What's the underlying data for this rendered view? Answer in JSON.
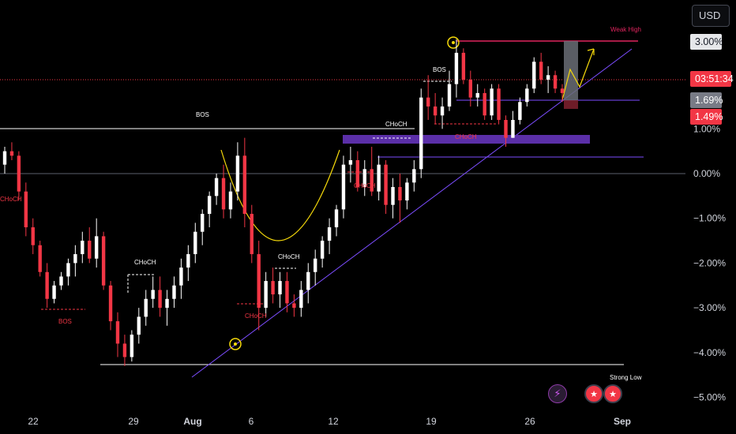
{
  "axis": {
    "currency": "USD",
    "price_tags": {
      "top": "3.00%",
      "countdown": "03:51:34",
      "mid": "1.69%",
      "low": "1.49%"
    },
    "y_ticks": [
      {
        "value": 1.0,
        "label": "1.00%"
      },
      {
        "value": 0.0,
        "label": "0.00%"
      },
      {
        "value": -1.0,
        "label": "−1.00%"
      },
      {
        "value": -2.0,
        "label": "−2.00%"
      },
      {
        "value": -3.0,
        "label": "−3.00%"
      },
      {
        "value": -4.0,
        "label": "−4.00%"
      },
      {
        "value": -5.0,
        "label": "−5.00%"
      }
    ],
    "x_ticks": [
      {
        "label": "22",
        "bold": false
      },
      {
        "label": "29",
        "bold": false
      },
      {
        "label": "Aug",
        "bold": true
      },
      {
        "label": "6",
        "bold": false
      },
      {
        "label": "12",
        "bold": false
      },
      {
        "label": "19",
        "bold": false
      },
      {
        "label": "26",
        "bold": false
      },
      {
        "label": "Sep",
        "bold": true
      }
    ]
  },
  "annotations": {
    "bos_major": "BOS",
    "bos_left": "BOS",
    "bos_top": "BOS",
    "choch_left": "CHoCH",
    "choch_1": "CHoCH",
    "choch_2": "CHoCH",
    "choch_3": "CHoCH",
    "choch_4": "CHoCH",
    "choch_5": "CHoCH",
    "choch_6": "CHoCH",
    "weak_high": "Weak High",
    "strong_low": "Strong Low"
  },
  "colors": {
    "up": "#ffffff",
    "down": "#f23645",
    "background": "#000000",
    "trendline": "#7c4dff",
    "zone": "#5b2fa8",
    "curve": "#f5d90a",
    "weak_high_line": "#e0245e"
  },
  "icons": [
    "flash-icon",
    "us-flag-icon",
    "us-flag-icon"
  ],
  "chart_data": {
    "type": "candlestick",
    "y_unit": "%",
    "ylim": [
      -5.3,
      3.6
    ],
    "x_period": "Jul 20 – Sep 1",
    "candles": [
      [
        0.2,
        0.6,
        0.0,
        0.5
      ],
      [
        0.5,
        0.7,
        0.3,
        0.4
      ],
      [
        0.4,
        0.5,
        -0.6,
        -0.4
      ],
      [
        -0.4,
        -0.2,
        -1.4,
        -1.2
      ],
      [
        -1.2,
        -1.0,
        -1.8,
        -1.6
      ],
      [
        -1.6,
        -1.5,
        -2.3,
        -2.2
      ],
      [
        -2.2,
        -2.0,
        -3.0,
        -2.8
      ],
      [
        -2.8,
        -2.4,
        -2.9,
        -2.5
      ],
      [
        -2.5,
        -2.2,
        -2.6,
        -2.3
      ],
      [
        -2.3,
        -1.9,
        -2.5,
        -2.0
      ],
      [
        -2.0,
        -1.6,
        -2.3,
        -1.8
      ],
      [
        -1.8,
        -1.3,
        -2.0,
        -1.5
      ],
      [
        -1.5,
        -1.2,
        -2.0,
        -1.9
      ],
      [
        -1.9,
        -1.0,
        -2.1,
        -1.4
      ],
      [
        -1.4,
        -1.3,
        -2.6,
        -2.5
      ],
      [
        -2.5,
        -2.4,
        -3.5,
        -3.3
      ],
      [
        -3.3,
        -3.1,
        -4.1,
        -3.8
      ],
      [
        -3.8,
        -3.6,
        -4.3,
        -4.1
      ],
      [
        -4.1,
        -3.5,
        -4.2,
        -3.6
      ],
      [
        -3.6,
        -3.0,
        -3.8,
        -3.2
      ],
      [
        -3.2,
        -2.6,
        -3.4,
        -2.8
      ],
      [
        -2.8,
        -2.3,
        -3.0,
        -2.6
      ],
      [
        -2.6,
        -2.3,
        -3.2,
        -3.0
      ],
      [
        -3.0,
        -2.6,
        -3.4,
        -2.8
      ],
      [
        -2.8,
        -2.3,
        -3.0,
        -2.5
      ],
      [
        -2.5,
        -1.9,
        -2.8,
        -2.1
      ],
      [
        -2.1,
        -1.6,
        -2.4,
        -1.8
      ],
      [
        -1.8,
        -1.1,
        -2.0,
        -1.3
      ],
      [
        -1.3,
        -0.8,
        -1.6,
        -0.9
      ],
      [
        -0.9,
        -0.4,
        -1.2,
        -0.5
      ],
      [
        -0.5,
        0.0,
        -0.7,
        -0.1
      ],
      [
        -0.1,
        0.2,
        -1.0,
        -0.8
      ],
      [
        -0.8,
        -0.2,
        -1.0,
        -0.4
      ],
      [
        -0.4,
        0.7,
        -0.6,
        0.4
      ],
      [
        0.4,
        0.8,
        -1.2,
        -0.9
      ],
      [
        -0.9,
        -0.7,
        -2.0,
        -1.8
      ],
      [
        -1.8,
        -1.5,
        -3.5,
        -3.0
      ],
      [
        -3.0,
        -2.2,
        -3.2,
        -2.4
      ],
      [
        -2.4,
        -2.1,
        -2.9,
        -2.7
      ],
      [
        -2.7,
        -2.2,
        -3.0,
        -2.4
      ],
      [
        -2.4,
        -2.2,
        -3.1,
        -2.9
      ],
      [
        -2.9,
        -2.7,
        -3.2,
        -3.0
      ],
      [
        -3.0,
        -2.4,
        -3.2,
        -2.6
      ],
      [
        -2.6,
        -2.0,
        -2.9,
        -2.2
      ],
      [
        -2.2,
        -1.7,
        -2.5,
        -1.9
      ],
      [
        -1.9,
        -1.4,
        -2.1,
        -1.5
      ],
      [
        -1.5,
        -1.0,
        -1.8,
        -1.2
      ],
      [
        -1.2,
        -0.7,
        -1.4,
        -0.8
      ],
      [
        -0.8,
        0.4,
        -1.0,
        0.2
      ],
      [
        0.2,
        0.6,
        -0.2,
        0.3
      ],
      [
        0.3,
        0.5,
        -0.4,
        -0.3
      ],
      [
        -0.3,
        0.3,
        -0.5,
        0.1
      ],
      [
        0.1,
        0.6,
        -0.5,
        -0.4
      ],
      [
        -0.4,
        0.4,
        -0.6,
        0.2
      ],
      [
        0.2,
        0.3,
        -0.9,
        -0.7
      ],
      [
        -0.7,
        -0.1,
        -1.0,
        -0.3
      ],
      [
        -0.3,
        0.0,
        -1.1,
        -0.6
      ],
      [
        -0.6,
        -0.1,
        -0.8,
        -0.2
      ],
      [
        -0.2,
        0.3,
        -0.4,
        0.1
      ],
      [
        0.1,
        1.9,
        -0.1,
        1.7
      ],
      [
        1.7,
        2.2,
        1.2,
        1.5
      ],
      [
        1.5,
        1.8,
        1.1,
        1.3
      ],
      [
        1.3,
        1.7,
        1.0,
        1.5
      ],
      [
        1.5,
        2.3,
        1.4,
        2.0
      ],
      [
        2.0,
        3.0,
        1.7,
        2.7
      ],
      [
        2.7,
        2.8,
        2.0,
        2.1
      ],
      [
        2.1,
        2.3,
        1.5,
        1.7
      ],
      [
        1.7,
        2.0,
        1.5,
        1.8
      ],
      [
        1.8,
        1.9,
        1.2,
        1.3
      ],
      [
        1.3,
        2.0,
        1.2,
        1.9
      ],
      [
        1.9,
        2.0,
        1.1,
        1.2
      ],
      [
        1.2,
        1.3,
        0.6,
        0.8
      ],
      [
        0.8,
        1.4,
        0.8,
        1.2
      ],
      [
        1.2,
        1.7,
        1.1,
        1.6
      ],
      [
        1.6,
        2.0,
        1.5,
        1.9
      ],
      [
        1.9,
        2.6,
        1.8,
        2.5
      ],
      [
        2.5,
        2.7,
        2.0,
        2.1
      ],
      [
        2.1,
        2.4,
        1.8,
        2.2
      ],
      [
        2.2,
        2.3,
        1.8,
        1.9
      ],
      [
        1.9,
        2.0,
        1.6,
        1.8
      ]
    ],
    "levels": [
      {
        "name": "Weak High",
        "value": 3.0
      },
      {
        "name": "BOS",
        "value": 1.0
      },
      {
        "name": "Strong Low",
        "value": -4.3
      }
    ],
    "zones": [
      {
        "name": "CHoCH",
        "from": 0.7,
        "to": 0.85
      }
    ],
    "grid": false,
    "legend": "none"
  }
}
